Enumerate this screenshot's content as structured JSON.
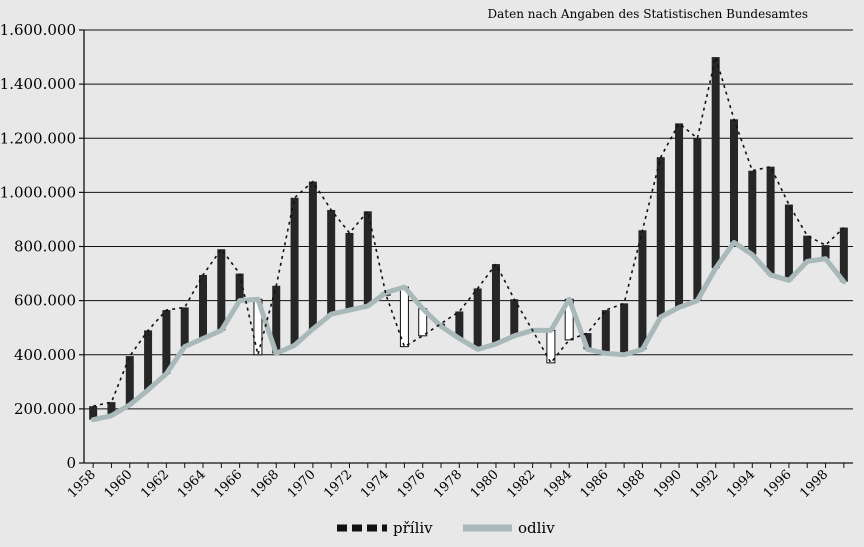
{
  "chart_data": {
    "type": "bar",
    "source_note": "Daten nach Angaben des Statistischen Bundesamtes",
    "ylim": [
      0,
      1600000
    ],
    "yticks": [
      0,
      200000,
      400000,
      600000,
      800000,
      1000000,
      1200000,
      1400000,
      1600000
    ],
    "ytick_labels": [
      "0",
      "200.000",
      "400.000",
      "600.000",
      "800.000",
      "1.000.000",
      "1.200.000",
      "1.400.000",
      "1.600.000"
    ],
    "xtick_labels": [
      "1958",
      "1960",
      "1962",
      "1964",
      "1966",
      "1968",
      "1970",
      "1972",
      "1974",
      "1976",
      "1978",
      "1980",
      "1982",
      "1984",
      "1986",
      "1988",
      "1990",
      "1992",
      "1994",
      "1996",
      "1998"
    ],
    "x": [
      1958,
      1959,
      1960,
      1961,
      1962,
      1963,
      1964,
      1965,
      1966,
      1967,
      1968,
      1969,
      1970,
      1971,
      1972,
      1973,
      1974,
      1975,
      1976,
      1977,
      1978,
      1979,
      1980,
      1981,
      1982,
      1983,
      1984,
      1985,
      1986,
      1987,
      1988,
      1989,
      1990,
      1991,
      1992,
      1993,
      1994,
      1995,
      1996,
      1997,
      1998,
      1999
    ],
    "grid": true,
    "legend_position": "bottom",
    "series": [
      {
        "name": "příliv",
        "style": "dashed",
        "color": "#111111",
        "values": [
          210000,
          225000,
          395000,
          490000,
          565000,
          575000,
          695000,
          790000,
          700000,
          400000,
          655000,
          980000,
          1040000,
          935000,
          850000,
          930000,
          620000,
          430000,
          470000,
          515000,
          560000,
          645000,
          735000,
          605000,
          490000,
          370000,
          455000,
          480000,
          565000,
          590000,
          860000,
          1130000,
          1255000,
          1200000,
          1500000,
          1270000,
          1080000,
          1095000,
          955000,
          840000,
          805000,
          870000
        ]
      },
      {
        "name": "odliv",
        "style": "solid",
        "color": "#a9b8b8",
        "values": [
          160000,
          175000,
          215000,
          270000,
          330000,
          430000,
          460000,
          490000,
          600000,
          605000,
          405000,
          435000,
          495000,
          550000,
          565000,
          580000,
          630000,
          650000,
          570000,
          505000,
          460000,
          420000,
          440000,
          470000,
          490000,
          490000,
          605000,
          420000,
          405000,
          400000,
          420000,
          540000,
          575000,
          600000,
          720000,
          815000,
          770000,
          695000,
          675000,
          745000,
          755000,
          670000
        ]
      }
    ]
  }
}
